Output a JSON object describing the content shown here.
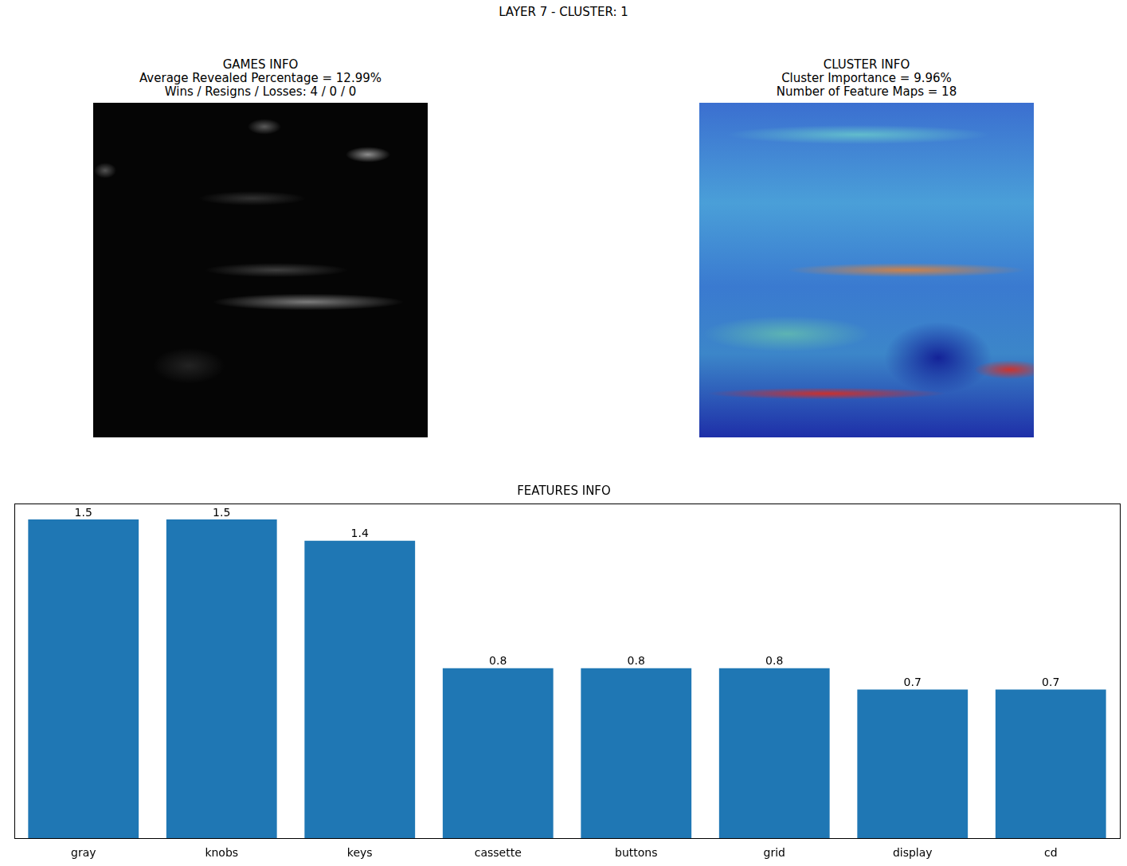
{
  "title": "LAYER 7 - CLUSTER: 1",
  "panels": [
    {
      "title": [
        "GAMES INFO",
        "Average Revealed Percentage = 12.99%",
        "Wins / Resigns / Losses: 4 / 0 / 0"
      ]
    },
    {
      "title": [
        "CLUSTER INFO",
        "Cluster Importance = 9.96%",
        "Number of Feature Maps = 18"
      ]
    }
  ],
  "chart_data": {
    "type": "bar",
    "title": "FEATURES INFO",
    "categories": [
      "gray",
      "knobs",
      "keys",
      "cassette",
      "buttons",
      "grid",
      "display",
      "cd"
    ],
    "values": [
      1.5,
      1.5,
      1.4,
      0.8,
      0.8,
      0.8,
      0.7,
      0.7
    ],
    "color": "#1f77b4",
    "ylim": [
      0,
      1.575
    ],
    "data_labels": true,
    "tick_labels": "x",
    "grid": false
  }
}
